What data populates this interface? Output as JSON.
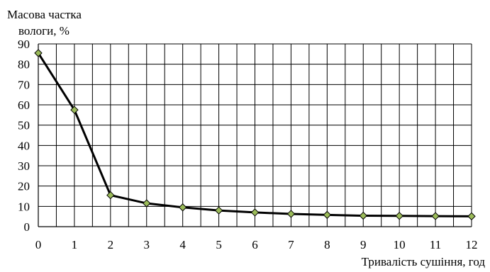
{
  "chart_data": {
    "type": "line",
    "title": "",
    "ylabel_lines": [
      "Масова частка",
      "вологи, %"
    ],
    "xlabel": "Тривалість сушіння, год",
    "x": [
      0,
      1,
      2,
      3,
      4,
      5,
      6,
      7,
      8,
      9,
      10,
      11,
      12
    ],
    "series": [
      {
        "values": [
          85.5,
          57.5,
          15.5,
          11.5,
          9.5,
          8,
          7,
          6.3,
          5.8,
          5.4,
          5.3,
          5.2,
          5.1
        ]
      }
    ],
    "xlim": [
      0,
      12
    ],
    "ylim": [
      0,
      90
    ],
    "x_ticks": [
      "0",
      "1",
      "2",
      "3",
      "4",
      "5",
      "6",
      "7",
      "8",
      "9",
      "10",
      "11",
      "12"
    ],
    "y_ticks": [
      "0",
      "10",
      "20",
      "30",
      "40",
      "50",
      "60",
      "70",
      "80",
      "90"
    ],
    "grid": true,
    "legend": "none",
    "colors": {
      "line": "#000000",
      "marker_fill": "#9bbb59",
      "marker_stroke": "#000000",
      "grid": "#000000"
    },
    "marker": "diamond"
  }
}
